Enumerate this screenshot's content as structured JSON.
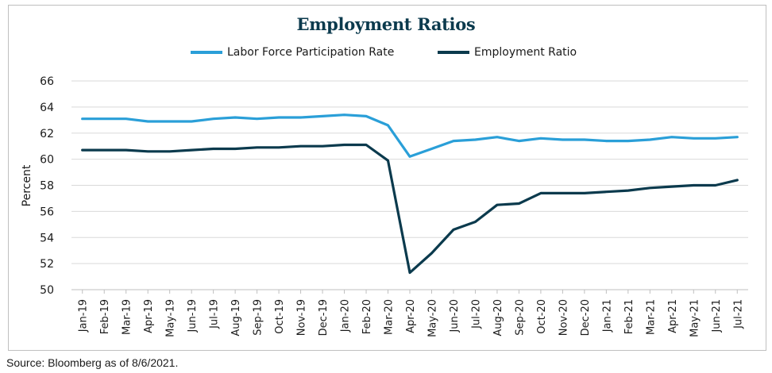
{
  "chart_data": {
    "type": "line",
    "title": "Employment Ratios",
    "xlabel": "",
    "ylabel": "Percent",
    "ylim": [
      50,
      66
    ],
    "yticks": [
      50,
      52,
      54,
      56,
      58,
      60,
      62,
      64,
      66
    ],
    "grid": "horizontal",
    "legend": "top-center",
    "categories": [
      "Jan-19",
      "Feb-19",
      "Mar-19",
      "Apr-19",
      "May-19",
      "Jun-19",
      "Jul-19",
      "Aug-19",
      "Sep-19",
      "Oct-19",
      "Nov-19",
      "Dec-19",
      "Jan-20",
      "Feb-20",
      "Mar-20",
      "Apr-20",
      "May-20",
      "Jun-20",
      "Jul-20",
      "Aug-20",
      "Sep-20",
      "Oct-20",
      "Nov-20",
      "Dec-20",
      "Jan-21",
      "Feb-21",
      "Mar-21",
      "Apr-21",
      "May-21",
      "Jun-21",
      "Jul-21"
    ],
    "series": [
      {
        "name": "Labor Force Participation Rate",
        "color": "#2a9fd8",
        "values": [
          63.1,
          63.1,
          63.1,
          62.9,
          62.9,
          62.9,
          63.1,
          63.2,
          63.1,
          63.2,
          63.2,
          63.3,
          63.4,
          63.3,
          62.6,
          60.2,
          60.8,
          61.4,
          61.5,
          61.7,
          61.4,
          61.6,
          61.5,
          61.5,
          61.4,
          61.4,
          61.5,
          61.7,
          61.6,
          61.6,
          61.7
        ]
      },
      {
        "name": "Employment Ratio",
        "color": "#0b3a4d",
        "values": [
          60.7,
          60.7,
          60.7,
          60.6,
          60.6,
          60.7,
          60.8,
          60.8,
          60.9,
          60.9,
          61.0,
          61.0,
          61.1,
          61.1,
          59.9,
          51.3,
          52.8,
          54.6,
          55.2,
          56.5,
          56.6,
          57.4,
          57.4,
          57.4,
          57.5,
          57.6,
          57.8,
          57.9,
          58.0,
          58.0,
          58.4
        ]
      }
    ]
  },
  "source_note": "Source: Bloomberg as of 8/6/2021."
}
